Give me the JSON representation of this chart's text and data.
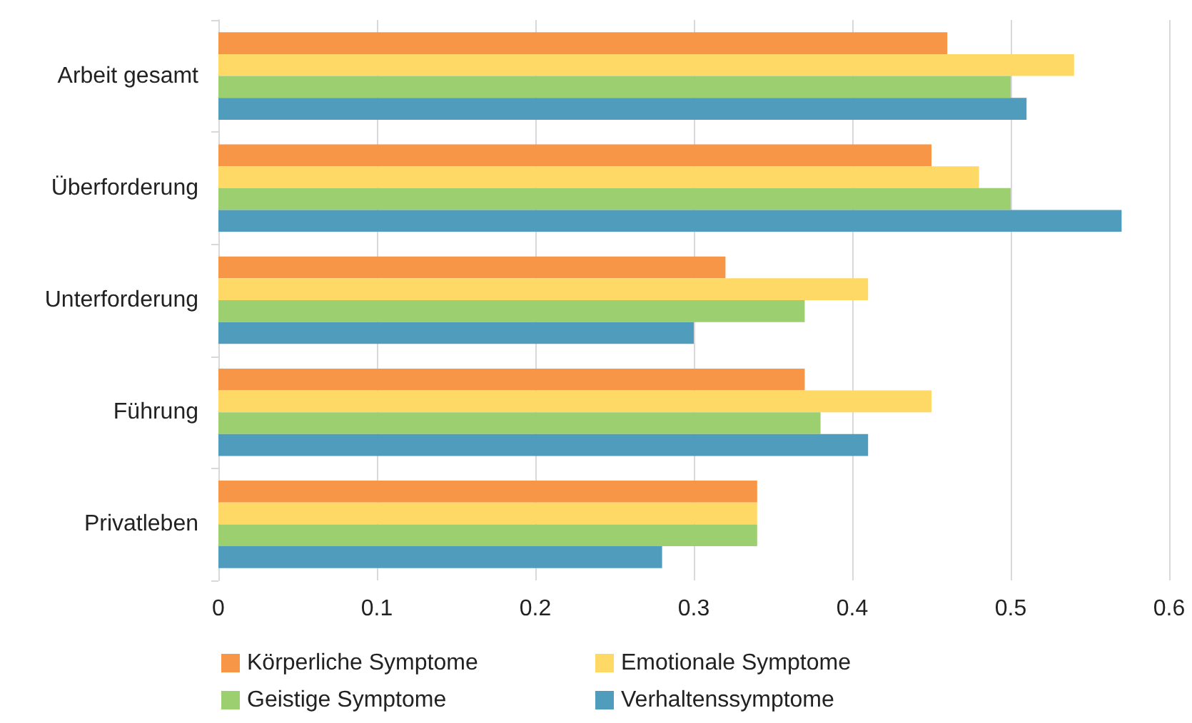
{
  "chart_data": {
    "type": "bar",
    "orientation": "horizontal",
    "categories": [
      "Arbeit gesamt",
      "Überforderung",
      "Unterforderung",
      "Führung",
      "Privatleben"
    ],
    "series": [
      {
        "name": "Körperliche Symptome",
        "color": "#f79646",
        "values": [
          0.46,
          0.45,
          0.32,
          0.37,
          0.34
        ]
      },
      {
        "name": "Emotionale Symptome",
        "color": "#ffd966",
        "values": [
          0.54,
          0.48,
          0.41,
          0.45,
          0.34
        ]
      },
      {
        "name": "Geistige Symptome",
        "color": "#9bcf70",
        "values": [
          0.5,
          0.5,
          0.37,
          0.38,
          0.34
        ]
      },
      {
        "name": "Verhaltenssymptome",
        "color": "#4f9cbc",
        "values": [
          0.51,
          0.57,
          0.3,
          0.41,
          0.28
        ]
      }
    ],
    "xlim": [
      0,
      0.6
    ],
    "xticks": [
      0,
      0.1,
      0.2,
      0.3,
      0.4,
      0.5,
      0.6
    ],
    "grid": "x",
    "legend": "bottom"
  }
}
